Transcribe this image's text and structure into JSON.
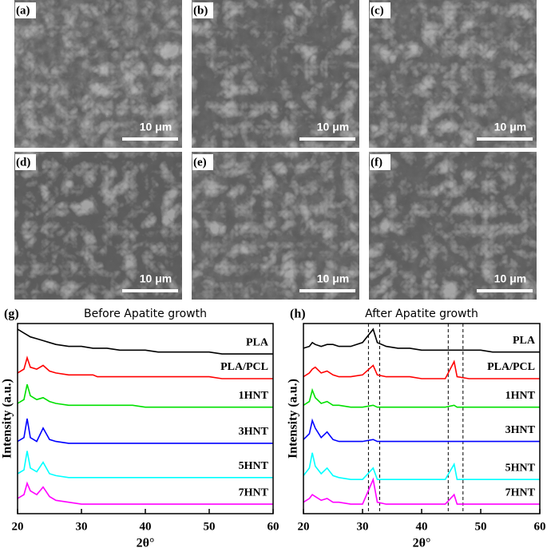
{
  "images": [
    {
      "label": "(a)",
      "scale_bar": "10 μm"
    },
    {
      "label": "(b)",
      "scale_bar": "10 μm"
    },
    {
      "label": "(c)",
      "scale_bar": "10 μm"
    },
    {
      "label": "(d)",
      "scale_bar": "10 μm"
    },
    {
      "label": "(e)",
      "scale_bar": "10 μm"
    },
    {
      "label": "(f)",
      "scale_bar": "10 μm"
    }
  ],
  "chart_data": [
    {
      "type": "line",
      "panel": "(g)",
      "title": "Before Apatite growth",
      "x_label": "2θ°",
      "y_label": "Intensity (a.u.)",
      "x": [
        20,
        21,
        21.5,
        22,
        23,
        24,
        25,
        26,
        28,
        30,
        31.8,
        32.5,
        34,
        36,
        38,
        40,
        42,
        44,
        45.5,
        46,
        48,
        50,
        52,
        54,
        56,
        58,
        60
      ],
      "xlim": [
        20,
        60
      ],
      "xticks": [
        20,
        30,
        40,
        50,
        60
      ],
      "ylim": [
        0,
        100
      ],
      "series": [
        {
          "name": "PLA",
          "color": "#000000",
          "values": [
            97,
            95,
            94,
            93,
            92,
            91,
            90,
            89,
            88,
            88,
            87,
            87,
            87,
            86,
            86,
            86,
            85,
            85,
            85,
            85,
            85,
            85,
            84,
            84,
            84,
            84,
            84
          ]
        },
        {
          "name": "PLA/PCL",
          "color": "#ff0000",
          "values": [
            74,
            76,
            82,
            77,
            76,
            78,
            75,
            74,
            73,
            73,
            73,
            72,
            72,
            72,
            72,
            72,
            72,
            72,
            72,
            72,
            72,
            72,
            71,
            71,
            71,
            71,
            71
          ]
        },
        {
          "name": "1HNT",
          "color": "#00e000",
          "values": [
            58,
            60,
            68,
            62,
            60,
            61,
            59,
            58,
            57,
            57,
            57,
            57,
            57,
            57,
            57,
            56,
            56,
            56,
            56,
            56,
            56,
            56,
            56,
            56,
            56,
            56,
            56
          ]
        },
        {
          "name": "3HNT",
          "color": "#0000ff",
          "values": [
            38,
            40,
            50,
            40,
            38,
            45,
            39,
            38,
            37,
            37,
            37,
            37,
            37,
            37,
            37,
            37,
            37,
            37,
            37,
            37,
            37,
            37,
            37,
            37,
            37,
            37,
            37
          ]
        },
        {
          "name": "5HNT",
          "color": "#00ffff",
          "values": [
            21,
            23,
            33,
            24,
            22,
            27,
            21,
            20,
            19,
            19,
            19,
            19,
            19,
            19,
            19,
            19,
            19,
            19,
            19,
            19,
            19,
            19,
            19,
            19,
            19,
            19,
            19
          ]
        },
        {
          "name": "7HNT",
          "color": "#ff00ff",
          "values": [
            8,
            10,
            16,
            12,
            10,
            14,
            9,
            7,
            6,
            5,
            5,
            5,
            5,
            5,
            5,
            5,
            5,
            5,
            5,
            5,
            5,
            5,
            5,
            5,
            5,
            5,
            5
          ]
        }
      ]
    },
    {
      "type": "line",
      "panel": "(h)",
      "title": "After Apatite growth",
      "x_label": "2θ°",
      "y_label": "Intensity (a.u.)",
      "x": [
        20,
        21,
        21.5,
        22,
        23,
        24,
        25,
        26,
        28,
        30,
        31.8,
        32.5,
        34,
        36,
        38,
        40,
        42,
        44,
        45.5,
        46,
        48,
        50,
        52,
        54,
        56,
        58,
        60
      ],
      "xlim": [
        20,
        60
      ],
      "xticks": [
        20,
        30,
        40,
        50,
        60
      ],
      "ylim": [
        0,
        100
      ],
      "reference_lines": [
        31,
        32.9,
        44.5,
        47
      ],
      "series": [
        {
          "name": "PLA",
          "color": "#000000",
          "values": [
            87,
            88,
            90,
            89,
            88,
            89,
            89,
            88,
            88,
            90,
            97,
            90,
            88,
            87,
            87,
            86,
            86,
            86,
            86,
            86,
            86,
            86,
            85,
            85,
            85,
            85,
            85
          ]
        },
        {
          "name": "PLA/PCL",
          "color": "#ff0000",
          "values": [
            72,
            74,
            76,
            77,
            74,
            75,
            73,
            72,
            72,
            73,
            78,
            73,
            72,
            72,
            72,
            71,
            71,
            71,
            80,
            72,
            71,
            71,
            71,
            71,
            71,
            71,
            71
          ]
        },
        {
          "name": "1HNT",
          "color": "#00e000",
          "values": [
            57,
            59,
            65,
            61,
            58,
            59,
            57,
            57,
            56,
            56,
            57,
            56,
            56,
            56,
            56,
            56,
            56,
            56,
            57,
            56,
            56,
            56,
            56,
            56,
            56,
            56,
            56
          ]
        },
        {
          "name": "3HNT",
          "color": "#0000ff",
          "values": [
            39,
            42,
            49,
            45,
            40,
            43,
            39,
            38,
            38,
            38,
            39,
            38,
            38,
            38,
            38,
            38,
            38,
            38,
            38,
            38,
            38,
            38,
            38,
            38,
            38,
            38,
            38
          ]
        },
        {
          "name": "5HNT",
          "color": "#00ffff",
          "values": [
            20,
            24,
            32,
            25,
            21,
            24,
            20,
            19,
            18,
            18,
            24,
            18,
            18,
            18,
            18,
            18,
            18,
            18,
            26,
            18,
            18,
            18,
            18,
            18,
            18,
            18,
            18
          ]
        },
        {
          "name": "7HNT",
          "color": "#ff00ff",
          "values": [
            6,
            8,
            10,
            9,
            7,
            8,
            6,
            6,
            5,
            5,
            18,
            6,
            5,
            5,
            5,
            5,
            5,
            5,
            10,
            5,
            5,
            5,
            5,
            5,
            5,
            5,
            5
          ]
        }
      ]
    }
  ]
}
